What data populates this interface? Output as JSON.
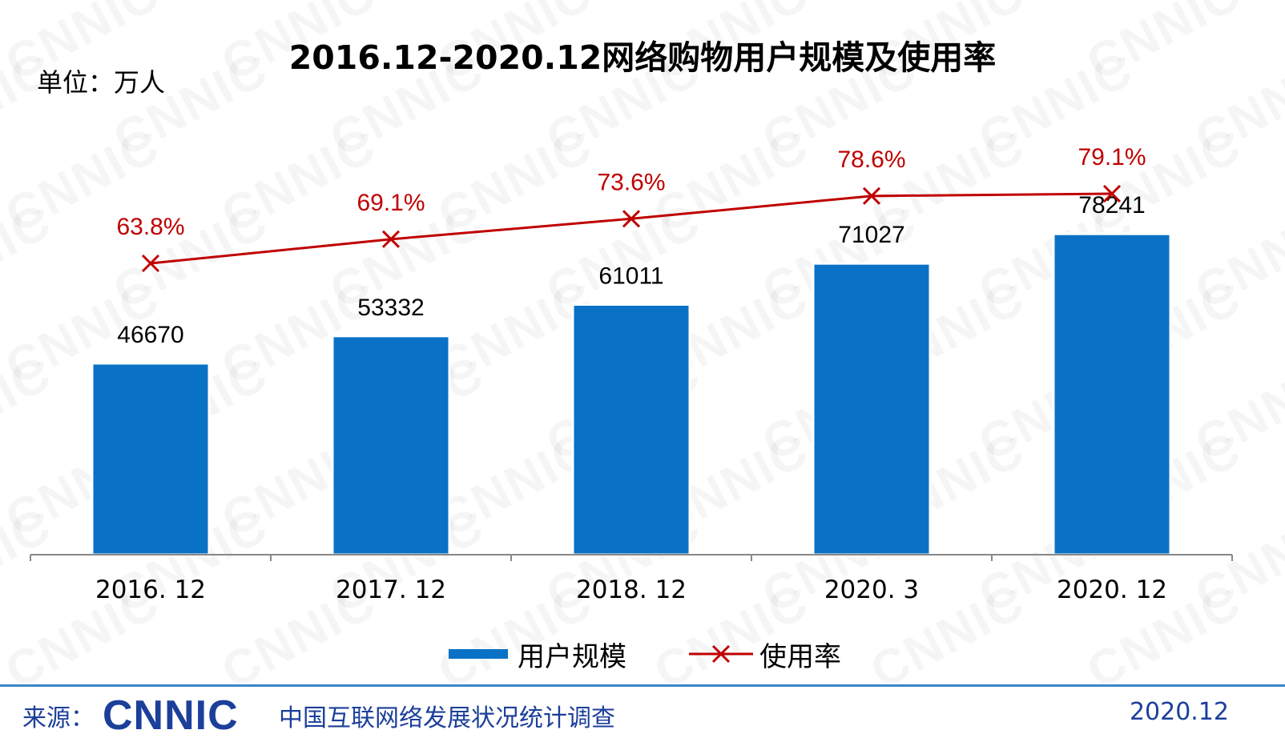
{
  "header": {
    "title": "2016.12-2020.12网络购物用户规模及使用率",
    "unit": "单位：万人"
  },
  "chart_data": {
    "type": "bar",
    "title": "2016.12-2020.12网络购物用户规模及使用率",
    "categories": [
      "2016. 12",
      "2017. 12",
      "2018. 12",
      "2020. 3",
      "2020. 12"
    ],
    "series": [
      {
        "name": "用户规模",
        "type": "bar",
        "color": "#0a72c6",
        "values": [
          46670,
          53332,
          61011,
          71027,
          78241
        ],
        "labels": [
          "46670",
          "53332",
          "61011",
          "71027",
          "78241"
        ]
      },
      {
        "name": "使用率",
        "type": "line",
        "color": "#c00000",
        "marker": "x",
        "values": [
          63.8,
          69.1,
          73.6,
          78.6,
          79.1
        ],
        "labels": [
          "63.8%",
          "69.1%",
          "73.6%",
          "78.6%",
          "79.1%"
        ]
      }
    ],
    "ylabel": "单位：万人",
    "grid": false,
    "legend_position": "bottom"
  },
  "legend": {
    "items": [
      "用户规模",
      "使用率"
    ]
  },
  "footer": {
    "source_label": "来源：",
    "logo_text": "CNNIC",
    "survey_name": "中国互联网络发展状况统计调查",
    "date": "2020.12"
  }
}
